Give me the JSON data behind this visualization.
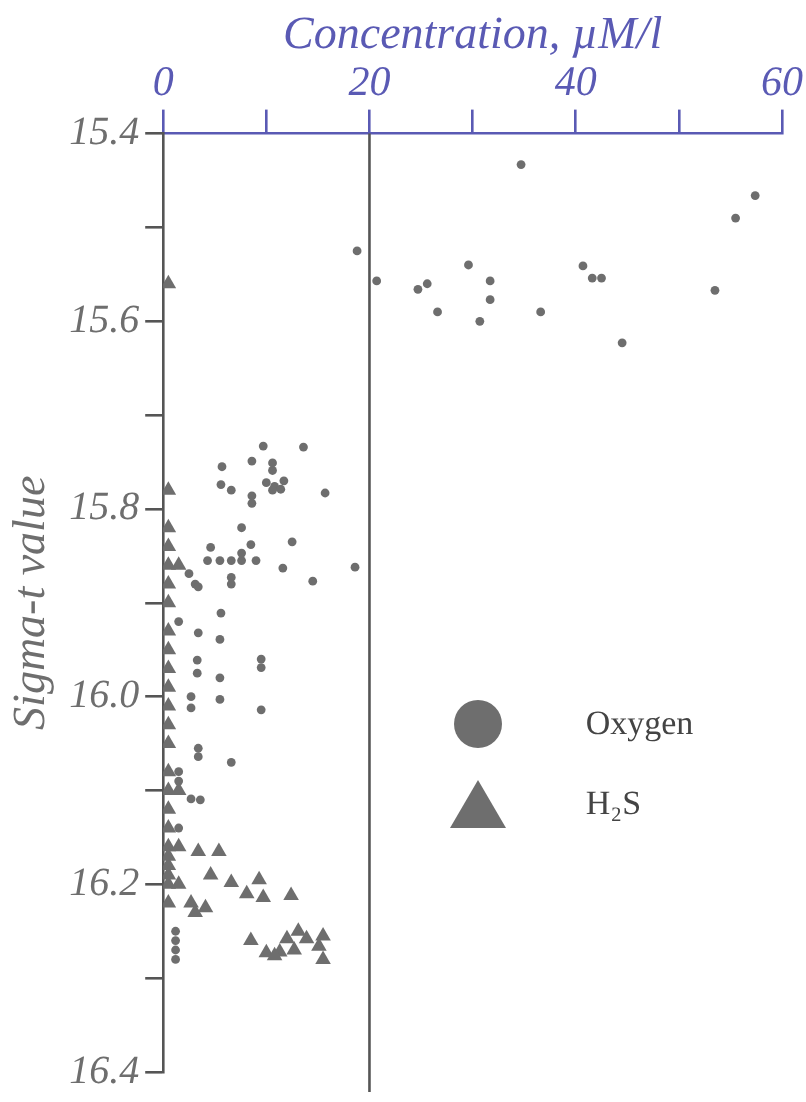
{
  "chart_data": {
    "type": "scatter",
    "xlabel": "Concentration, µM/l",
    "ylabel": "Sigma-t value",
    "xlim": [
      0,
      60
    ],
    "xticks": [
      0,
      {
        "value": 10,
        "label": null
      },
      20,
      {
        "value": 30,
        "label": null
      },
      40,
      {
        "value": 50,
        "label": null
      },
      60
    ],
    "ylim": [
      16.4,
      15.4
    ],
    "yticks": [
      {
        "value": 15.4,
        "label": "15.4"
      },
      {
        "value": 15.5,
        "label": null
      },
      {
        "value": 15.6,
        "label": "15.6"
      },
      {
        "value": 15.7,
        "label": null
      },
      {
        "value": 15.8,
        "label": "15.8"
      },
      {
        "value": 15.9,
        "label": null
      },
      {
        "value": 16.0,
        "label": "16.0"
      },
      {
        "value": 16.1,
        "label": null
      },
      {
        "value": 16.2,
        "label": "16.2"
      },
      {
        "value": 16.3,
        "label": null
      },
      {
        "value": 16.4,
        "label": "16.4"
      }
    ],
    "grid": false,
    "legend": "right",
    "ref_lines": [
      {
        "axis": "x",
        "value": 20
      }
    ],
    "series": [
      {
        "name": "Oxygen",
        "color": "#6e6e6e",
        "marker": "circle",
        "x": [
          34.7,
          57.4,
          55.5,
          18.8,
          20.7,
          24.7,
          25.6,
          26.6,
          29.6,
          31.7,
          31.7,
          30.7,
          36.6,
          40.7,
          41.6,
          42.5,
          44.5,
          53.5,
          9.7,
          13.6,
          5.7,
          8.6,
          10.6,
          10.6,
          5.6,
          6.6,
          10.0,
          10.8,
          11.7,
          10.6,
          11.4,
          8.6,
          8.6,
          15.7,
          7.6,
          8.5,
          12.5,
          4.6,
          4.3,
          5.5,
          6.6,
          7.6,
          9.0,
          7.6,
          11.6,
          18.6,
          14.5,
          6.6,
          6.6,
          2.5,
          3.1,
          3.4,
          5.6,
          3.4,
          5.5,
          3.3,
          3.3,
          5.5,
          9.5,
          9.5,
          5.5,
          2.7,
          2.7,
          9.5,
          3.4,
          3.4,
          6.6,
          2.7,
          3.6,
          1.5,
          1.5,
          1.2,
          1.2,
          1.2,
          1.2,
          1.5,
          1.5
        ],
        "values": [
          15.433,
          15.466,
          15.49,
          15.525,
          15.557,
          15.566,
          15.56,
          15.59,
          15.54,
          15.557,
          15.577,
          15.6,
          15.59,
          15.541,
          15.554,
          15.554,
          15.623,
          15.567,
          15.733,
          15.734,
          15.755,
          15.749,
          15.751,
          15.759,
          15.774,
          15.78,
          15.772,
          15.776,
          15.77,
          15.78,
          15.779,
          15.786,
          15.794,
          15.783,
          15.82,
          15.838,
          15.835,
          15.841,
          15.855,
          15.855,
          15.855,
          15.855,
          15.855,
          15.847,
          15.863,
          15.862,
          15.877,
          15.873,
          15.88,
          15.869,
          15.88,
          15.883,
          15.911,
          15.932,
          15.939,
          15.961,
          15.975,
          15.98,
          15.96,
          15.969,
          16.003,
          16.0,
          16.012,
          16.014,
          16.055,
          16.064,
          16.07,
          16.109,
          16.11,
          16.08,
          16.09,
          16.25,
          16.26,
          16.27,
          16.28,
          16.14,
          15.92
        ]
      },
      {
        "name": "H₂S",
        "color": "#6e6e6e",
        "marker": "triangle",
        "x": [
          0.5,
          0.5,
          0.5,
          0.5,
          0.5,
          0.5,
          0.5,
          0.5,
          0.5,
          0.5,
          0.5,
          0.5,
          0.5,
          0.5,
          0.5,
          0.5,
          0.5,
          0.5,
          0.5,
          0.5,
          0.5,
          0.5,
          0.5,
          0.5,
          1.5,
          1.5,
          1.5,
          1.5,
          3.4,
          5.4,
          4.6,
          6.6,
          9.3,
          8.1,
          9.7,
          12.4,
          4.1,
          3.1,
          2.7,
          8.5,
          10.0,
          11.3,
          12.0,
          13.1,
          13.9,
          15.1,
          15.5,
          15.5,
          12.7,
          10.8
        ],
        "values": [
          15.56,
          15.78,
          15.82,
          15.84,
          15.86,
          15.88,
          15.9,
          15.93,
          15.95,
          15.97,
          15.99,
          16.01,
          16.03,
          16.05,
          16.08,
          16.1,
          16.12,
          16.14,
          16.16,
          16.18,
          16.2,
          16.22,
          16.17,
          16.19,
          15.86,
          16.1,
          16.16,
          16.2,
          16.165,
          16.165,
          16.19,
          16.198,
          16.195,
          16.21,
          16.214,
          16.212,
          16.225,
          16.23,
          16.22,
          16.26,
          16.273,
          16.272,
          16.258,
          16.25,
          16.258,
          16.266,
          16.255,
          16.28,
          16.27,
          16.276
        ]
      }
    ]
  }
}
